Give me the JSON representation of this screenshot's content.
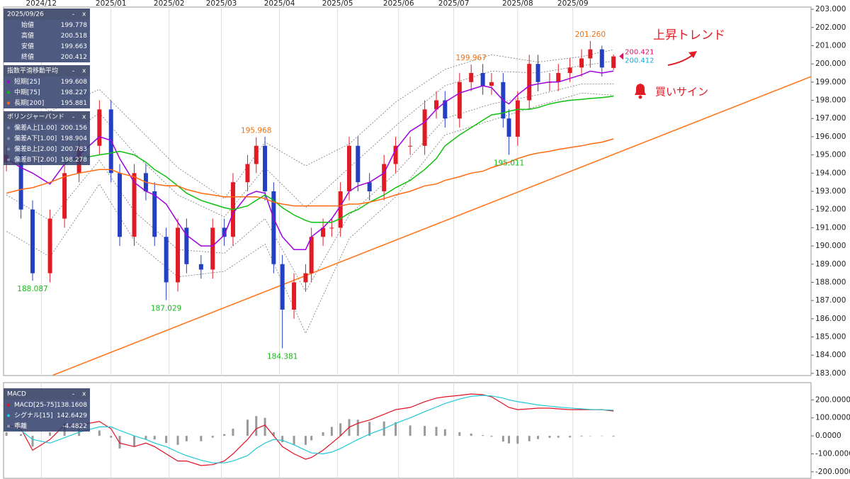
{
  "chart_data": [
    {
      "type": "candlestick",
      "xlim": [
        -1,
        277
      ],
      "ylim": [
        182.88,
        203.12
      ],
      "xticks": [
        {
          "value": 12,
          "label": "2024/12"
        },
        {
          "value": 36,
          "label": "2025/01"
        },
        {
          "value": 56,
          "label": "2025/02"
        },
        {
          "value": 74,
          "label": "2025/03"
        },
        {
          "value": 94,
          "label": "2025/04"
        },
        {
          "value": 114,
          "label": "2025/05"
        },
        {
          "value": 135,
          "label": "2025/06"
        },
        {
          "value": 154,
          "label": "2025/07"
        },
        {
          "value": 176,
          "label": "2025/08"
        },
        {
          "value": 195,
          "label": "2025/09"
        }
      ],
      "yticks": [
        {
          "value": 183,
          "label": "183.000"
        },
        {
          "value": 184,
          "label": "184.000"
        },
        {
          "value": 185,
          "label": "185.000"
        },
        {
          "value": 186,
          "label": "186.000"
        },
        {
          "value": 187,
          "label": "187.000"
        },
        {
          "value": 188,
          "label": "188.000"
        },
        {
          "value": 189,
          "label": "189.000"
        },
        {
          "value": 190,
          "label": "190.000"
        },
        {
          "value": 191,
          "label": "191.000"
        },
        {
          "value": 192,
          "label": "192.000"
        },
        {
          "value": 193,
          "label": "193.000"
        },
        {
          "value": 194,
          "label": "194.000"
        },
        {
          "value": 195,
          "label": "195.000"
        },
        {
          "value": 196,
          "label": "196.000"
        },
        {
          "value": 197,
          "label": "197.000"
        },
        {
          "value": 198,
          "label": "198.000"
        },
        {
          "value": 199,
          "label": "199.000"
        },
        {
          "value": 200,
          "label": "200.000"
        },
        {
          "value": 201,
          "label": "201.000"
        },
        {
          "value": 202,
          "label": "202.000"
        },
        {
          "value": 203,
          "label": "203.000"
        }
      ],
      "up_color": "#e01b24",
      "down_color": "#2340c0",
      "x": [
        0,
        5,
        9,
        15,
        20,
        25,
        32,
        36,
        39,
        44,
        48,
        51,
        55,
        59,
        62,
        67,
        71,
        75,
        78,
        83,
        86,
        89,
        92,
        95,
        99,
        103,
        105,
        109,
        112,
        115,
        118,
        121,
        125,
        130,
        134,
        139,
        144,
        148,
        151,
        156,
        160,
        164,
        167,
        171,
        173,
        176,
        180,
        183,
        187,
        190,
        194,
        198,
        201,
        205,
        209
      ],
      "open": [
        194.6,
        195.0,
        192.0,
        188.5,
        191.5,
        194.0,
        195.5,
        197.5,
        194.0,
        190.5,
        194.0,
        193.0,
        190.5,
        188.0,
        191.0,
        189.0,
        188.7,
        191.0,
        190.5,
        193.5,
        194.5,
        195.5,
        193.0,
        189.0,
        186.5,
        188.0,
        188.5,
        190.5,
        191.0,
        191.0,
        193.0,
        195.5,
        193.5,
        193.0,
        194.5,
        195.5,
        195.5,
        197.5,
        198.0,
        197.0,
        199.0,
        199.5,
        198.8,
        199.0,
        197.0,
        196.0,
        198.0,
        200.0,
        199.0,
        199.0,
        199.5,
        199.8,
        200.3,
        200.8,
        199.778
      ],
      "high": [
        195.5,
        195.5,
        192.5,
        192.0,
        194.5,
        196.0,
        198.0,
        198.0,
        194.5,
        194.5,
        194.5,
        193.5,
        191.0,
        191.5,
        191.5,
        189.5,
        191.5,
        191.5,
        194.0,
        195.0,
        195.968,
        196.0,
        193.5,
        189.5,
        188.5,
        189.0,
        191.0,
        191.5,
        191.5,
        193.5,
        196.0,
        196.0,
        194.0,
        195.0,
        196.0,
        196.0,
        198.0,
        198.5,
        198.5,
        199.5,
        199.967,
        200.0,
        199.5,
        199.5,
        197.5,
        198.5,
        200.5,
        200.5,
        199.5,
        200.0,
        200.3,
        200.8,
        201.26,
        201.0,
        200.518
      ],
      "low": [
        194.1,
        191.5,
        188.087,
        188.0,
        191.0,
        193.5,
        195.0,
        193.5,
        190.0,
        190.0,
        192.5,
        190.0,
        187.029,
        187.5,
        188.5,
        188.2,
        188.2,
        190.0,
        190.0,
        193.0,
        194.0,
        192.5,
        188.5,
        184.381,
        186.0,
        187.5,
        188.0,
        190.0,
        190.5,
        190.5,
        192.5,
        193.0,
        192.5,
        192.5,
        194.0,
        195.0,
        195.0,
        197.0,
        196.5,
        196.5,
        198.5,
        198.3,
        198.3,
        196.5,
        195.011,
        195.5,
        197.5,
        198.5,
        198.5,
        198.5,
        199.0,
        199.3,
        199.8,
        199.3,
        199.663
      ],
      "close": [
        195.0,
        192.0,
        188.5,
        191.5,
        194.0,
        195.5,
        197.5,
        194.0,
        190.5,
        194.0,
        193.0,
        190.5,
        188.0,
        191.0,
        189.0,
        188.7,
        191.0,
        190.5,
        193.5,
        194.5,
        195.5,
        193.0,
        189.0,
        186.5,
        188.0,
        188.5,
        190.5,
        191.0,
        191.0,
        193.0,
        195.5,
        193.5,
        193.0,
        194.5,
        195.5,
        195.5,
        197.5,
        198.0,
        197.0,
        199.0,
        199.5,
        198.8,
        199.0,
        197.0,
        196.0,
        198.0,
        200.0,
        199.0,
        199.0,
        199.5,
        199.8,
        200.3,
        200.8,
        199.8,
        200.412
      ],
      "legend": {
        "title": "2025/09/26",
        "rows": [
          {
            "label": "始値",
            "value": 199.778
          },
          {
            "label": "高値",
            "value": 200.518
          },
          {
            "label": "安値",
            "value": 199.663
          },
          {
            "label": "終値",
            "value": 200.412
          }
        ]
      },
      "panel_buttons": [
        "-",
        "x"
      ],
      "ma_title": "指数平滑移動平均",
      "series": [
        {
          "name": "短期[25]",
          "color": "#a000e0",
          "legend_value": 199.608,
          "values": [
            194.8,
            194.3,
            194.0,
            193.4,
            194.5,
            195.0,
            196.0,
            195.8,
            194.8,
            193.5,
            193.0,
            192.8,
            192.3,
            191.3,
            190.6,
            190.0,
            190.0,
            190.6,
            191.8,
            192.8,
            193.0,
            192.9,
            191.5,
            190.5,
            189.8,
            189.8,
            190.5,
            191.0,
            191.5,
            192.2,
            193.0,
            193.3,
            193.5,
            194.0,
            195.3,
            196.3,
            196.8,
            197.5,
            197.9,
            198.4,
            198.6,
            198.8,
            198.7,
            198.0,
            197.8,
            198.3,
            198.8,
            198.9,
            199.0,
            199.0,
            199.2,
            199.4,
            199.6,
            199.5,
            199.608
          ]
        },
        {
          "name": "中期[75]",
          "color": "#10c010",
          "legend_value": 198.227,
          "values": [
            null,
            null,
            null,
            null,
            194.6,
            194.8,
            195.0,
            195.1,
            195.2,
            195.0,
            194.6,
            194.2,
            193.8,
            193.3,
            192.9,
            192.5,
            192.3,
            192.1,
            192.0,
            192.2,
            192.5,
            192.8,
            192.5,
            192.1,
            191.7,
            191.4,
            191.3,
            191.3,
            191.3,
            191.5,
            191.8,
            192.0,
            192.4,
            192.8,
            193.2,
            193.6,
            194.2,
            194.8,
            195.5,
            196.1,
            196.5,
            196.9,
            197.2,
            197.3,
            197.4,
            197.5,
            197.5,
            197.6,
            197.8,
            197.9,
            198.0,
            198.05,
            198.1,
            198.15,
            198.227
          ]
        },
        {
          "name": "長期[200]",
          "color": "#ff6a10",
          "legend_value": 195.881,
          "values": [
            192.9,
            193.1,
            193.2,
            193.5,
            193.8,
            194.0,
            194.2,
            194.2,
            194.0,
            193.8,
            193.5,
            193.4,
            193.3,
            193.3,
            193.1,
            192.9,
            192.8,
            192.7,
            192.7,
            192.7,
            192.7,
            192.6,
            192.4,
            192.3,
            192.2,
            192.2,
            192.2,
            192.2,
            192.2,
            192.2,
            192.3,
            192.3,
            192.4,
            192.6,
            192.8,
            193.0,
            193.3,
            193.4,
            193.6,
            193.8,
            194.0,
            194.1,
            194.3,
            194.5,
            194.6,
            194.8,
            195.0,
            195.1,
            195.2,
            195.3,
            195.4,
            195.5,
            195.6,
            195.7,
            195.881
          ]
        }
      ],
      "bands": {
        "title": "ボリンジャーバンド",
        "color": "#777777",
        "x": [
          0,
          15,
          32,
          44,
          59,
          75,
          89,
          103,
          118,
          134,
          151,
          167,
          183,
          198,
          209
        ],
        "lines": [
          {
            "name": "偏差A上[1.00]",
            "legend_value": 200.156,
            "values": [
              196.8,
              195.4,
              197.3,
              195.1,
              192.8,
              191.6,
              194.3,
              192.1,
              194.3,
              196.6,
              198.8,
              199.6,
              199.5,
              199.9,
              200.156
            ]
          },
          {
            "name": "偏差A下[1.00]",
            "legend_value": 198.904,
            "values": [
              192.8,
              191.4,
              194.7,
              191.9,
              189.8,
              189.6,
              191.5,
              187.5,
              191.7,
              194.0,
              197.0,
              197.8,
              198.3,
              198.9,
              198.904
            ]
          },
          {
            "name": "偏差B上[2.00]",
            "legend_value": 200.783,
            "values": [
              198.8,
              197.4,
              198.6,
              196.7,
              194.3,
              192.6,
              195.7,
              194.4,
              195.6,
              197.9,
              199.7,
              200.5,
              200.1,
              200.4,
              200.783
            ]
          },
          {
            "name": "偏差B下[2.00]",
            "legend_value": 198.278,
            "values": [
              190.8,
              189.4,
              193.4,
              190.3,
              188.3,
              188.6,
              190.1,
              185.2,
              190.4,
              192.7,
              196.1,
              196.9,
              197.7,
              198.4,
              198.278
            ]
          }
        ]
      },
      "trendline": {
        "color": "#ff7a20",
        "x": [
          16,
          277
        ],
        "y": [
          182.9,
          199.3
        ]
      },
      "annotations": [
        {
          "label": "201.260",
          "x": 201,
          "y": 201.26,
          "kind": "high",
          "color": "#f07010"
        },
        {
          "label": "199.967",
          "x": 160,
          "y": 199.967,
          "kind": "high",
          "color": "#f07010"
        },
        {
          "label": "195.968",
          "x": 86,
          "y": 195.968,
          "kind": "high",
          "color": "#f07010"
        },
        {
          "label": "188.087",
          "x": 9,
          "y": 188.087,
          "kind": "low",
          "color": "#18b818"
        },
        {
          "label": "187.029",
          "x": 55,
          "y": 187.029,
          "kind": "low",
          "color": "#18b818"
        },
        {
          "label": "184.381",
          "x": 95,
          "y": 184.381,
          "kind": "low",
          "color": "#18b818"
        },
        {
          "label": "195.011",
          "x": 173,
          "y": 195.011,
          "kind": "low",
          "color": "#18b818"
        }
      ],
      "price_tags": [
        {
          "value": 200.421,
          "color": "#e0106a"
        },
        {
          "value": 200.412,
          "color": "#10a8e0"
        }
      ],
      "notes": [
        "上昇トレンド",
        "買いサイン"
      ]
    },
    {
      "type": "line",
      "title": "MACD",
      "xlim": [
        -1,
        277
      ],
      "ylim": [
        -236,
        296
      ],
      "yticks": [
        {
          "value": 200,
          "label": "200.0000"
        },
        {
          "value": 100,
          "label": "100.0000"
        },
        {
          "value": 0,
          "label": "0.0000"
        },
        {
          "value": -100,
          "label": "-100.0000"
        },
        {
          "value": -200,
          "label": "-200.0000"
        }
      ],
      "x": [
        0,
        5,
        9,
        15,
        20,
        25,
        32,
        36,
        39,
        44,
        48,
        51,
        55,
        59,
        62,
        67,
        71,
        75,
        78,
        83,
        86,
        89,
        92,
        95,
        99,
        103,
        105,
        109,
        112,
        115,
        118,
        121,
        125,
        130,
        134,
        139,
        144,
        148,
        151,
        156,
        160,
        164,
        167,
        171,
        173,
        176,
        180,
        183,
        187,
        190,
        194,
        198,
        201,
        205,
        209
      ],
      "series": [
        {
          "name": "MACD[25-75]",
          "color": "#e01020",
          "legend_value": 138.1608,
          "values": [
            60,
            40,
            -80,
            -20,
            60,
            60,
            80,
            40,
            -40,
            -60,
            -40,
            -60,
            -100,
            -140,
            -140,
            -165,
            -160,
            -140,
            -100,
            -20,
            40,
            60,
            0,
            -60,
            -100,
            -130,
            -120,
            -80,
            -40,
            0,
            48,
            70,
            88,
            120,
            146,
            158,
            190,
            210,
            217,
            225,
            233,
            229,
            217,
            178,
            158,
            146,
            150,
            154,
            154,
            150,
            146,
            146,
            146,
            146,
            138.1608
          ]
        },
        {
          "name": "シグナル[15]",
          "color": "#20c8d8",
          "legend_value": 142.6429,
          "values": [
            40,
            30,
            -20,
            -40,
            -10,
            20,
            50,
            50,
            30,
            0,
            -20,
            -40,
            -60,
            -90,
            -110,
            -135,
            -150,
            -150,
            -140,
            -110,
            -70,
            -40,
            -20,
            -25,
            -50,
            -80,
            -95,
            -100,
            -90,
            -70,
            -45,
            -20,
            10,
            40,
            70,
            100,
            135,
            160,
            180,
            205,
            220,
            225,
            222,
            210,
            200,
            190,
            180,
            172,
            165,
            160,
            155,
            150,
            147,
            145,
            142.6429
          ]
        }
      ],
      "bars": {
        "name": "乖離",
        "color": "#999999",
        "legend_value": -4.4822,
        "values": [
          20,
          10,
          -60,
          20,
          70,
          40,
          30,
          -10,
          -70,
          -60,
          -20,
          -20,
          -40,
          -50,
          -30,
          -30,
          -10,
          10,
          40,
          90,
          110,
          100,
          20,
          -35,
          -50,
          -50,
          -25,
          20,
          50,
          70,
          93,
          90,
          78,
          80,
          76,
          58,
          55,
          50,
          37,
          20,
          13,
          4,
          -5,
          -32,
          -42,
          -44,
          -30,
          -18,
          -11,
          -10,
          -9,
          -4,
          -1,
          1,
          -4.4822
        ]
      }
    }
  ]
}
